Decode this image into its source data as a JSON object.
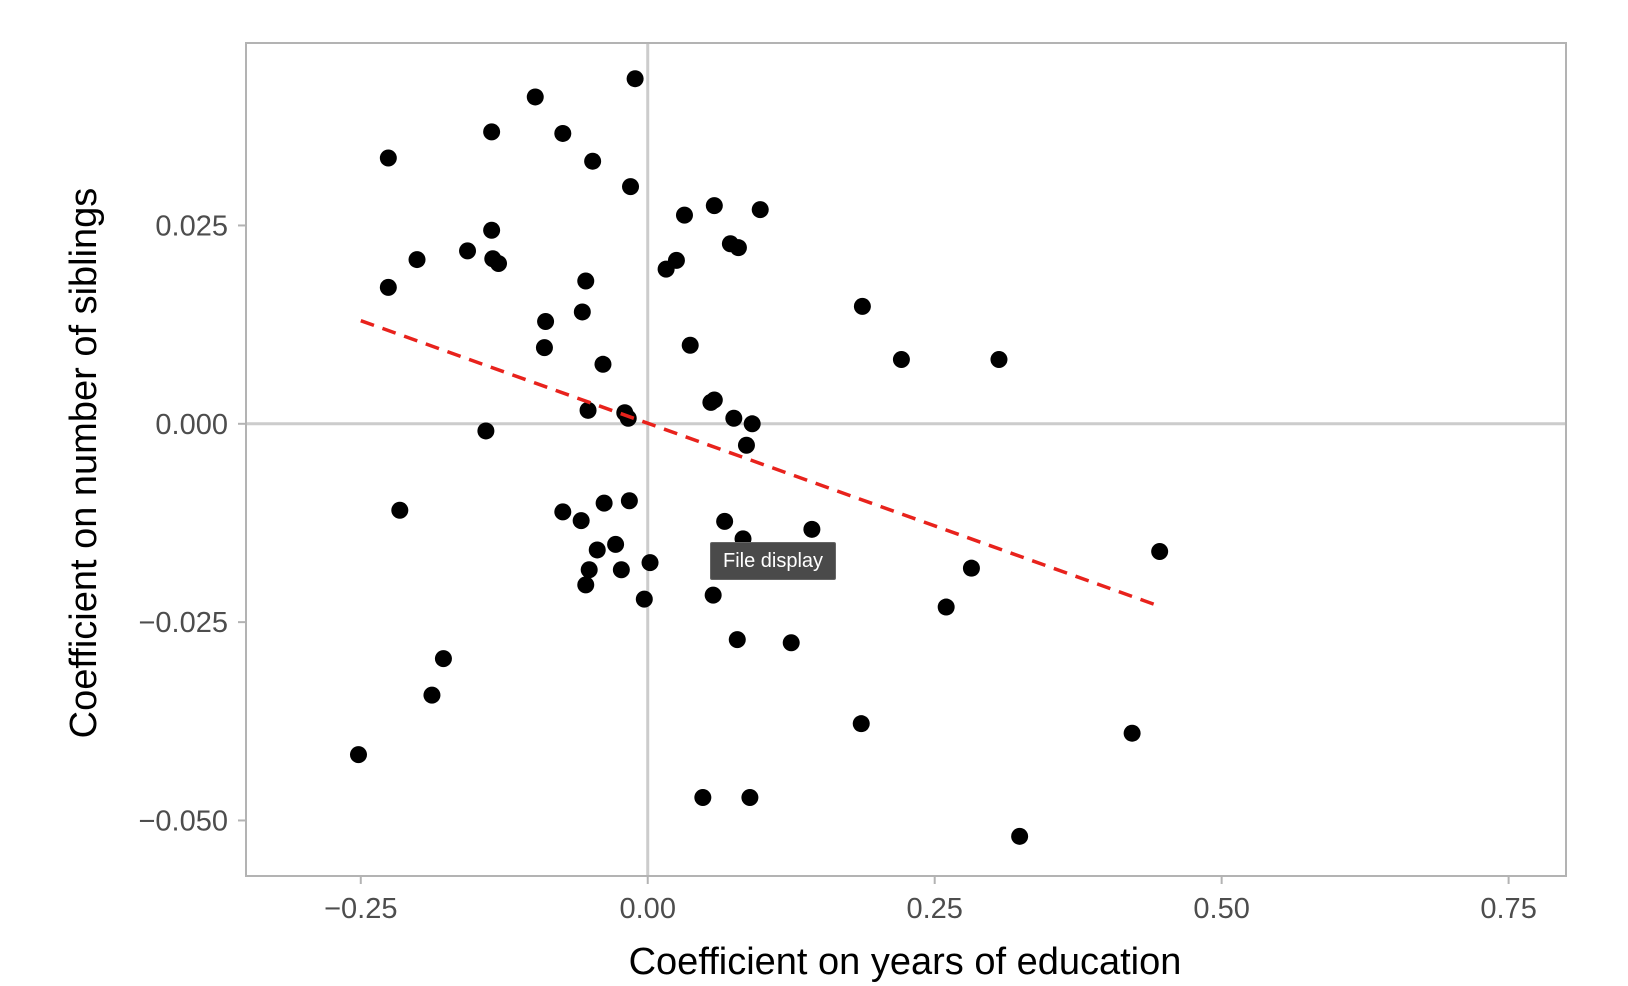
{
  "tooltip": {
    "text": "File display"
  },
  "chart_data": {
    "type": "scatter",
    "xlabel": "Coefficient on years of education",
    "ylabel": "Coefficient on number of siblings",
    "xlim": [
      -0.35,
      0.8
    ],
    "ylim": [
      -0.057,
      0.048
    ],
    "xticks": [
      {
        "value": -0.25,
        "label": "−0.25"
      },
      {
        "value": 0.0,
        "label": "0.00"
      },
      {
        "value": 0.25,
        "label": "0.25"
      },
      {
        "value": 0.5,
        "label": "0.50"
      },
      {
        "value": 0.75,
        "label": "0.75"
      }
    ],
    "yticks": [
      {
        "value": 0.025,
        "label": "0.025"
      },
      {
        "value": 0.0,
        "label": "0.000"
      },
      {
        "value": -0.025,
        "label": "−0.025"
      },
      {
        "value": -0.05,
        "label": "−0.050"
      }
    ],
    "reference_lines": {
      "x": 0,
      "y": 0
    },
    "grid": false,
    "colors": {
      "points": "#000000",
      "fit_line": "#e8221c",
      "reference": "#cccccc",
      "frame": "#b3b3b3"
    },
    "points": [
      {
        "x": -0.011,
        "y": 0.0435
      },
      {
        "x": -0.098,
        "y": 0.0412
      },
      {
        "x": -0.136,
        "y": 0.0368
      },
      {
        "x": -0.074,
        "y": 0.0366
      },
      {
        "x": -0.226,
        "y": 0.0335
      },
      {
        "x": -0.048,
        "y": 0.0331
      },
      {
        "x": -0.015,
        "y": 0.0299
      },
      {
        "x": 0.058,
        "y": 0.0275
      },
      {
        "x": 0.098,
        "y": 0.027
      },
      {
        "x": 0.032,
        "y": 0.0263
      },
      {
        "x": -0.136,
        "y": 0.0244
      },
      {
        "x": 0.072,
        "y": 0.0227
      },
      {
        "x": 0.079,
        "y": 0.0222
      },
      {
        "x": -0.157,
        "y": 0.0218
      },
      {
        "x": -0.201,
        "y": 0.0207
      },
      {
        "x": -0.135,
        "y": 0.0208
      },
      {
        "x": -0.13,
        "y": 0.0202
      },
      {
        "x": 0.025,
        "y": 0.0206
      },
      {
        "x": 0.016,
        "y": 0.0195
      },
      {
        "x": -0.054,
        "y": 0.018
      },
      {
        "x": -0.226,
        "y": 0.0172
      },
      {
        "x": -0.057,
        "y": 0.0141
      },
      {
        "x": -0.089,
        "y": 0.0129
      },
      {
        "x": 0.187,
        "y": 0.0148
      },
      {
        "x": 0.037,
        "y": 0.0099
      },
      {
        "x": -0.09,
        "y": 0.0096
      },
      {
        "x": -0.039,
        "y": 0.0075
      },
      {
        "x": 0.221,
        "y": 0.0081
      },
      {
        "x": 0.306,
        "y": 0.0081
      },
      {
        "x": 0.058,
        "y": 0.003
      },
      {
        "x": 0.055,
        "y": 0.0027
      },
      {
        "x": -0.052,
        "y": 0.0017
      },
      {
        "x": -0.02,
        "y": 0.0014
      },
      {
        "x": -0.017,
        "y": 0.0007
      },
      {
        "x": 0.075,
        "y": 0.0007
      },
      {
        "x": 0.091,
        "y": 0.0
      },
      {
        "x": -0.141,
        "y": -0.0009
      },
      {
        "x": 0.086,
        "y": -0.0027
      },
      {
        "x": -0.016,
        "y": -0.0097
      },
      {
        "x": -0.038,
        "y": -0.01
      },
      {
        "x": -0.216,
        "y": -0.0109
      },
      {
        "x": -0.074,
        "y": -0.0111
      },
      {
        "x": -0.058,
        "y": -0.0122
      },
      {
        "x": 0.067,
        "y": -0.0123
      },
      {
        "x": 0.143,
        "y": -0.0133
      },
      {
        "x": 0.083,
        "y": -0.0145
      },
      {
        "x": -0.028,
        "y": -0.0152
      },
      {
        "x": -0.044,
        "y": -0.0159
      },
      {
        "x": 0.446,
        "y": -0.0161
      },
      {
        "x": 0.002,
        "y": -0.0175
      },
      {
        "x": -0.051,
        "y": -0.0184
      },
      {
        "x": -0.023,
        "y": -0.0184
      },
      {
        "x": 0.282,
        "y": -0.0182
      },
      {
        "x": -0.054,
        "y": -0.0203
      },
      {
        "x": 0.057,
        "y": -0.0216
      },
      {
        "x": -0.003,
        "y": -0.0221
      },
      {
        "x": 0.26,
        "y": -0.0231
      },
      {
        "x": 0.078,
        "y": -0.0272
      },
      {
        "x": 0.125,
        "y": -0.0276
      },
      {
        "x": -0.178,
        "y": -0.0296
      },
      {
        "x": -0.188,
        "y": -0.0342
      },
      {
        "x": 0.186,
        "y": -0.0378
      },
      {
        "x": 0.422,
        "y": -0.039
      },
      {
        "x": -0.252,
        "y": -0.0417
      },
      {
        "x": 0.048,
        "y": -0.0471
      },
      {
        "x": 0.089,
        "y": -0.0471
      },
      {
        "x": 0.324,
        "y": -0.052
      }
    ],
    "fit_line": {
      "style": "dashed",
      "x": [
        -0.25,
        0.446
      ],
      "y": [
        0.013,
        -0.023
      ]
    }
  }
}
